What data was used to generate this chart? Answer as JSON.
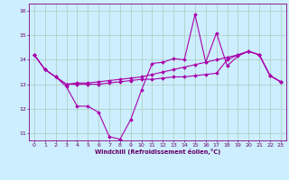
{
  "xlabel": "Windchill (Refroidissement éolien,°C)",
  "background_color": "#cceeff",
  "grid_color": "#aaccbb",
  "line_color": "#aa00aa",
  "xlim": [
    -0.5,
    23.5
  ],
  "ylim": [
    10.7,
    16.3
  ],
  "yticks": [
    11,
    12,
    13,
    14,
    15,
    16
  ],
  "xticks": [
    0,
    1,
    2,
    3,
    4,
    5,
    6,
    7,
    8,
    9,
    10,
    11,
    12,
    13,
    14,
    15,
    16,
    17,
    18,
    19,
    20,
    21,
    22,
    23
  ],
  "series1_x": [
    0,
    1,
    2,
    3,
    4,
    5,
    6,
    7,
    8,
    9,
    10,
    11,
    12,
    13,
    14,
    15,
    16,
    17,
    18,
    19,
    20,
    21,
    22,
    23
  ],
  "series1_y": [
    14.2,
    13.6,
    13.3,
    12.9,
    12.1,
    12.1,
    11.85,
    10.85,
    10.75,
    11.55,
    12.75,
    13.85,
    13.9,
    14.05,
    14.0,
    15.85,
    13.9,
    15.1,
    13.75,
    14.15,
    14.35,
    14.2,
    13.35,
    13.1
  ],
  "series2_x": [
    0,
    1,
    2,
    3,
    4,
    5,
    6,
    7,
    8,
    9,
    10,
    11,
    12,
    13,
    14,
    15,
    16,
    17,
    18,
    19,
    20,
    21,
    22,
    23
  ],
  "series2_y": [
    14.2,
    13.6,
    13.3,
    13.0,
    13.05,
    13.05,
    13.1,
    13.15,
    13.2,
    13.25,
    13.3,
    13.4,
    13.5,
    13.6,
    13.7,
    13.8,
    13.9,
    14.0,
    14.1,
    14.2,
    14.35,
    14.2,
    13.35,
    13.1
  ],
  "series3_x": [
    0,
    1,
    2,
    3,
    4,
    5,
    6,
    7,
    8,
    9,
    10,
    11,
    12,
    13,
    14,
    15,
    16,
    17,
    18,
    19,
    20,
    21,
    22,
    23
  ],
  "series3_y": [
    14.2,
    13.6,
    13.3,
    13.0,
    13.0,
    13.0,
    13.0,
    13.05,
    13.1,
    13.15,
    13.2,
    13.2,
    13.25,
    13.3,
    13.3,
    13.35,
    13.4,
    13.45,
    14.0,
    14.2,
    14.35,
    14.2,
    13.35,
    13.1
  ]
}
